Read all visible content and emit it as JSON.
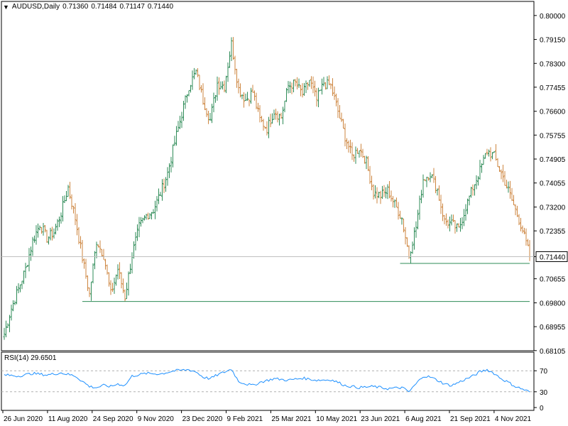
{
  "header": {
    "dropdown_glyph": "▼",
    "symbol": "AUDUSD,Daily",
    "open": "0.71360",
    "high": "0.71484",
    "low": "0.71147",
    "close": "0.71440"
  },
  "rsi_label": "RSI(14) 29.6501",
  "current_price_label": "0.71440",
  "colors": {
    "up_bar": "#2e8b57",
    "down_bar": "#cd853f",
    "rsi_line": "#1e90ff",
    "support_line": "#2e8b57",
    "grid_border": "#000000",
    "price_line": "#c0c0c0"
  },
  "chart_data": [
    {
      "type": "ohlc-bar",
      "price_axis": {
        "ylim": [
          0.681,
          0.805
        ],
        "ticks": [
          "0.80000",
          "0.79150",
          "0.78300",
          "0.77455",
          "0.76600",
          "0.75755",
          "0.74905",
          "0.74055",
          "0.73200",
          "0.72355",
          "0.71440",
          "0.70655",
          "0.69800",
          "0.68955",
          "0.68105"
        ]
      },
      "x_tick_labels": [
        "26 Jun 2020",
        "11 Aug 2020",
        "24 Sep 2020",
        "9 Nov 2020",
        "23 Dec 2020",
        "9 Feb 2021",
        "25 Mar 2021",
        "10 May 2021",
        "23 Jun 2021",
        "6 Aug 2021",
        "21 Sep 2021",
        "4 Nov 2021"
      ],
      "close_series_keypoints": [
        [
          0,
          0.687
        ],
        [
          4,
          0.696
        ],
        [
          8,
          0.703
        ],
        [
          12,
          0.71
        ],
        [
          16,
          0.72
        ],
        [
          20,
          0.726
        ],
        [
          24,
          0.721
        ],
        [
          28,
          0.723
        ],
        [
          32,
          0.73
        ],
        [
          36,
          0.739
        ],
        [
          40,
          0.728
        ],
        [
          44,
          0.714
        ],
        [
          48,
          0.701
        ],
        [
          52,
          0.72
        ],
        [
          56,
          0.715
        ],
        [
          60,
          0.701
        ],
        [
          64,
          0.71
        ],
        [
          68,
          0.7
        ],
        [
          72,
          0.715
        ],
        [
          76,
          0.725
        ],
        [
          80,
          0.729
        ],
        [
          84,
          0.731
        ],
        [
          88,
          0.737
        ],
        [
          92,
          0.744
        ],
        [
          96,
          0.755
        ],
        [
          100,
          0.765
        ],
        [
          104,
          0.775
        ],
        [
          108,
          0.78
        ],
        [
          112,
          0.77
        ],
        [
          116,
          0.763
        ],
        [
          120,
          0.776
        ],
        [
          124,
          0.775
        ],
        [
          128,
          0.79
        ],
        [
          132,
          0.774
        ],
        [
          136,
          0.77
        ],
        [
          140,
          0.773
        ],
        [
          144,
          0.763
        ],
        [
          148,
          0.76
        ],
        [
          152,
          0.766
        ],
        [
          156,
          0.764
        ],
        [
          160,
          0.775
        ],
        [
          164,
          0.776
        ],
        [
          168,
          0.772
        ],
        [
          172,
          0.777
        ],
        [
          176,
          0.77
        ],
        [
          180,
          0.776
        ],
        [
          184,
          0.775
        ],
        [
          188,
          0.766
        ],
        [
          192,
          0.757
        ],
        [
          196,
          0.75
        ],
        [
          200,
          0.753
        ],
        [
          204,
          0.748
        ],
        [
          208,
          0.737
        ],
        [
          212,
          0.736
        ],
        [
          216,
          0.738
        ],
        [
          220,
          0.733
        ],
        [
          224,
          0.728
        ],
        [
          228,
          0.715
        ],
        [
          232,
          0.725
        ],
        [
          236,
          0.742
        ],
        [
          240,
          0.744
        ],
        [
          244,
          0.738
        ],
        [
          248,
          0.727
        ],
        [
          252,
          0.726
        ],
        [
          256,
          0.724
        ],
        [
          260,
          0.732
        ],
        [
          264,
          0.739
        ],
        [
          268,
          0.745
        ],
        [
          272,
          0.752
        ],
        [
          276,
          0.75
        ],
        [
          280,
          0.744
        ],
        [
          284,
          0.738
        ],
        [
          288,
          0.731
        ],
        [
          292,
          0.724
        ],
        [
          296,
          0.7144
        ]
      ],
      "bar_count": 297,
      "current_price": 0.7144,
      "support_lines": [
        {
          "y": 0.6985,
          "x_start_bar": 44,
          "x_end_bar": 296
        },
        {
          "y": 0.712,
          "x_start_bar": 223,
          "x_end_bar": 296
        }
      ]
    },
    {
      "type": "line",
      "name": "RSI(14)",
      "ylim": [
        0,
        100
      ],
      "ticks": [
        "70",
        "30",
        "0"
      ],
      "levels": [
        70,
        30
      ],
      "rsi_keypoints": [
        [
          0,
          62
        ],
        [
          8,
          60
        ],
        [
          16,
          65
        ],
        [
          24,
          62
        ],
        [
          32,
          66
        ],
        [
          40,
          60
        ],
        [
          48,
          40
        ],
        [
          52,
          38
        ],
        [
          56,
          42
        ],
        [
          60,
          40
        ],
        [
          64,
          45
        ],
        [
          68,
          42
        ],
        [
          72,
          60
        ],
        [
          80,
          65
        ],
        [
          88,
          64
        ],
        [
          96,
          70
        ],
        [
          104,
          72
        ],
        [
          108,
          68
        ],
        [
          112,
          58
        ],
        [
          116,
          55
        ],
        [
          120,
          62
        ],
        [
          128,
          73
        ],
        [
          132,
          50
        ],
        [
          136,
          45
        ],
        [
          140,
          42
        ],
        [
          144,
          48
        ],
        [
          152,
          55
        ],
        [
          160,
          52
        ],
        [
          168,
          56
        ],
        [
          176,
          52
        ],
        [
          184,
          53
        ],
        [
          188,
          48
        ],
        [
          192,
          42
        ],
        [
          200,
          38
        ],
        [
          208,
          40
        ],
        [
          216,
          36
        ],
        [
          224,
          38
        ],
        [
          228,
          30
        ],
        [
          232,
          45
        ],
        [
          236,
          60
        ],
        [
          240,
          58
        ],
        [
          244,
          52
        ],
        [
          248,
          45
        ],
        [
          252,
          42
        ],
        [
          256,
          48
        ],
        [
          264,
          60
        ],
        [
          268,
          68
        ],
        [
          272,
          72
        ],
        [
          276,
          65
        ],
        [
          280,
          55
        ],
        [
          284,
          48
        ],
        [
          288,
          40
        ],
        [
          292,
          35
        ],
        [
          296,
          29.65
        ]
      ]
    }
  ]
}
